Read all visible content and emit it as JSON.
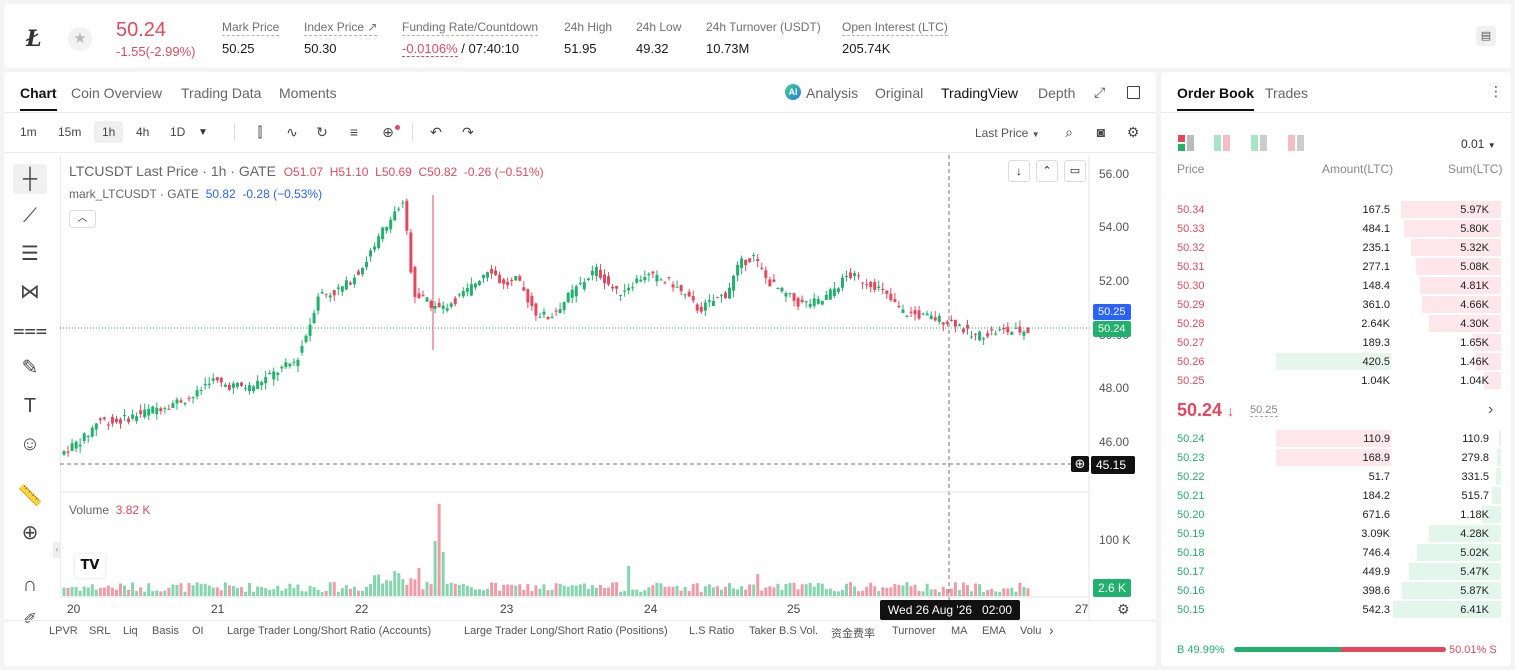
{
  "ticker": {
    "last_price": "50.24",
    "change": "-1.55(-2.99%)",
    "stats": [
      {
        "label": "Mark Price",
        "value": "50.25"
      },
      {
        "label": "Index Price ↗",
        "value": "50.30"
      },
      {
        "label": "Funding Rate/Countdown",
        "value": "-0.0106%",
        "value2": "/ 07:40:10"
      },
      {
        "label": "24h High",
        "value": "51.95"
      },
      {
        "label": "24h Low",
        "value": "49.32"
      },
      {
        "label": "24h Turnover (USDT)",
        "value": "10.73M"
      },
      {
        "label": "Open Interest (LTC)",
        "value": "205.74K"
      }
    ]
  },
  "chart_tabs": [
    "Chart",
    "Coin Overview",
    "Trading Data",
    "Moments"
  ],
  "view_tabs": [
    "Analysis",
    "Original",
    "TradingView",
    "Depth"
  ],
  "timeframes": [
    "1m",
    "15m",
    "1h",
    "4h",
    "1D"
  ],
  "last_price_select": "Last Price",
  "legend": {
    "symbol": "LTCUSDT Last Price · 1h · GATE",
    "o": "O51.07",
    "h": "H51.10",
    "l": "L50.69",
    "c": "C50.82",
    "chg": "-0.26 (−0.51%)",
    "mark_label": "mark_LTCUSDT · GATE",
    "mark_value": "50.82",
    "mark_chg": "-0.28 (−0.53%)"
  },
  "volume": {
    "label": "Volume",
    "value": "3.82 K"
  },
  "price_axis": [
    "56.00",
    "54.00",
    "52.00",
    "50.00",
    "48.00",
    "46.00"
  ],
  "volume_axis": "100 K",
  "axis_tags": {
    "mark": "50.25",
    "last": "50.24",
    "crosshair": "45.15",
    "volume": "2.6 K"
  },
  "time_axis": [
    "20",
    "21",
    "22",
    "23",
    "24",
    "25",
    "27"
  ],
  "crosshair_time": "Wed 26 Aug '26   02:00",
  "indicators": [
    "LPVR",
    "SRL",
    "Liq",
    "Basis",
    "OI",
    "Large Trader Long/Short Ratio (Accounts)",
    "Large Trader Long/Short Ratio (Positions)",
    "L.S Ratio",
    "Taker B.S Vol.",
    "资金费率",
    "Turnover",
    "MA",
    "EMA",
    "Volu"
  ],
  "orderbook": {
    "tabs": [
      "Order Book",
      "Trades"
    ],
    "precision": "0.01",
    "headers": [
      "Price",
      "Amount(LTC)",
      "Sum(LTC)"
    ],
    "asks": [
      {
        "price": "50.34",
        "amount": "167.5",
        "sum": "5.97K",
        "depth": 0.93,
        "amt_bar": 0
      },
      {
        "price": "50.33",
        "amount": "484.1",
        "sum": "5.80K",
        "depth": 0.9,
        "amt_bar": 0
      },
      {
        "price": "50.32",
        "amount": "235.1",
        "sum": "5.32K",
        "depth": 0.83,
        "amt_bar": 0
      },
      {
        "price": "50.31",
        "amount": "277.1",
        "sum": "5.08K",
        "depth": 0.79,
        "amt_bar": 0
      },
      {
        "price": "50.30",
        "amount": "148.4",
        "sum": "4.81K",
        "depth": 0.75,
        "amt_bar": 0
      },
      {
        "price": "50.29",
        "amount": "361.0",
        "sum": "4.66K",
        "depth": 0.73,
        "amt_bar": 0
      },
      {
        "price": "50.28",
        "amount": "2.64K",
        "sum": "4.30K",
        "depth": 0.67,
        "amt_bar": 0
      },
      {
        "price": "50.27",
        "amount": "189.3",
        "sum": "1.65K",
        "depth": 0.26,
        "amt_bar": 0
      },
      {
        "price": "50.26",
        "amount": "420.5",
        "sum": "1.46K",
        "depth": 0.23,
        "amt_bar": 0.16
      },
      {
        "price": "50.25",
        "amount": "1.04K",
        "sum": "1.04K",
        "depth": 0.16,
        "amt_bar": 0
      }
    ],
    "mid_price": "50.24",
    "mid_mark": "50.25",
    "bids": [
      {
        "price": "50.24",
        "amount": "110.9",
        "sum": "110.9",
        "depth": 0.02,
        "amt_bar": 0.16
      },
      {
        "price": "50.23",
        "amount": "168.9",
        "sum": "279.8",
        "depth": 0.04,
        "amt_bar": 0.16
      },
      {
        "price": "50.22",
        "amount": "51.7",
        "sum": "331.5",
        "depth": 0.05,
        "amt_bar": 0
      },
      {
        "price": "50.21",
        "amount": "184.2",
        "sum": "515.7",
        "depth": 0.08,
        "amt_bar": 0
      },
      {
        "price": "50.20",
        "amount": "671.6",
        "sum": "1.18K",
        "depth": 0.18,
        "amt_bar": 0
      },
      {
        "price": "50.19",
        "amount": "3.09K",
        "sum": "4.28K",
        "depth": 0.67,
        "amt_bar": 0
      },
      {
        "price": "50.18",
        "amount": "746.4",
        "sum": "5.02K",
        "depth": 0.78,
        "amt_bar": 0
      },
      {
        "price": "50.17",
        "amount": "449.9",
        "sum": "5.47K",
        "depth": 0.85,
        "amt_bar": 0
      },
      {
        "price": "50.16",
        "amount": "398.6",
        "sum": "5.87K",
        "depth": 0.92,
        "amt_bar": 0
      },
      {
        "price": "50.15",
        "amount": "542.3",
        "sum": "6.41K",
        "depth": 1.0,
        "amt_bar": 0
      }
    ],
    "buy_ratio": "49.99%",
    "sell_ratio": "50.01%",
    "buy_label": "B",
    "sell_label": "S"
  },
  "colors": {
    "up": "#20b26c",
    "down": "#e5485d",
    "mark": "#2962ff"
  }
}
